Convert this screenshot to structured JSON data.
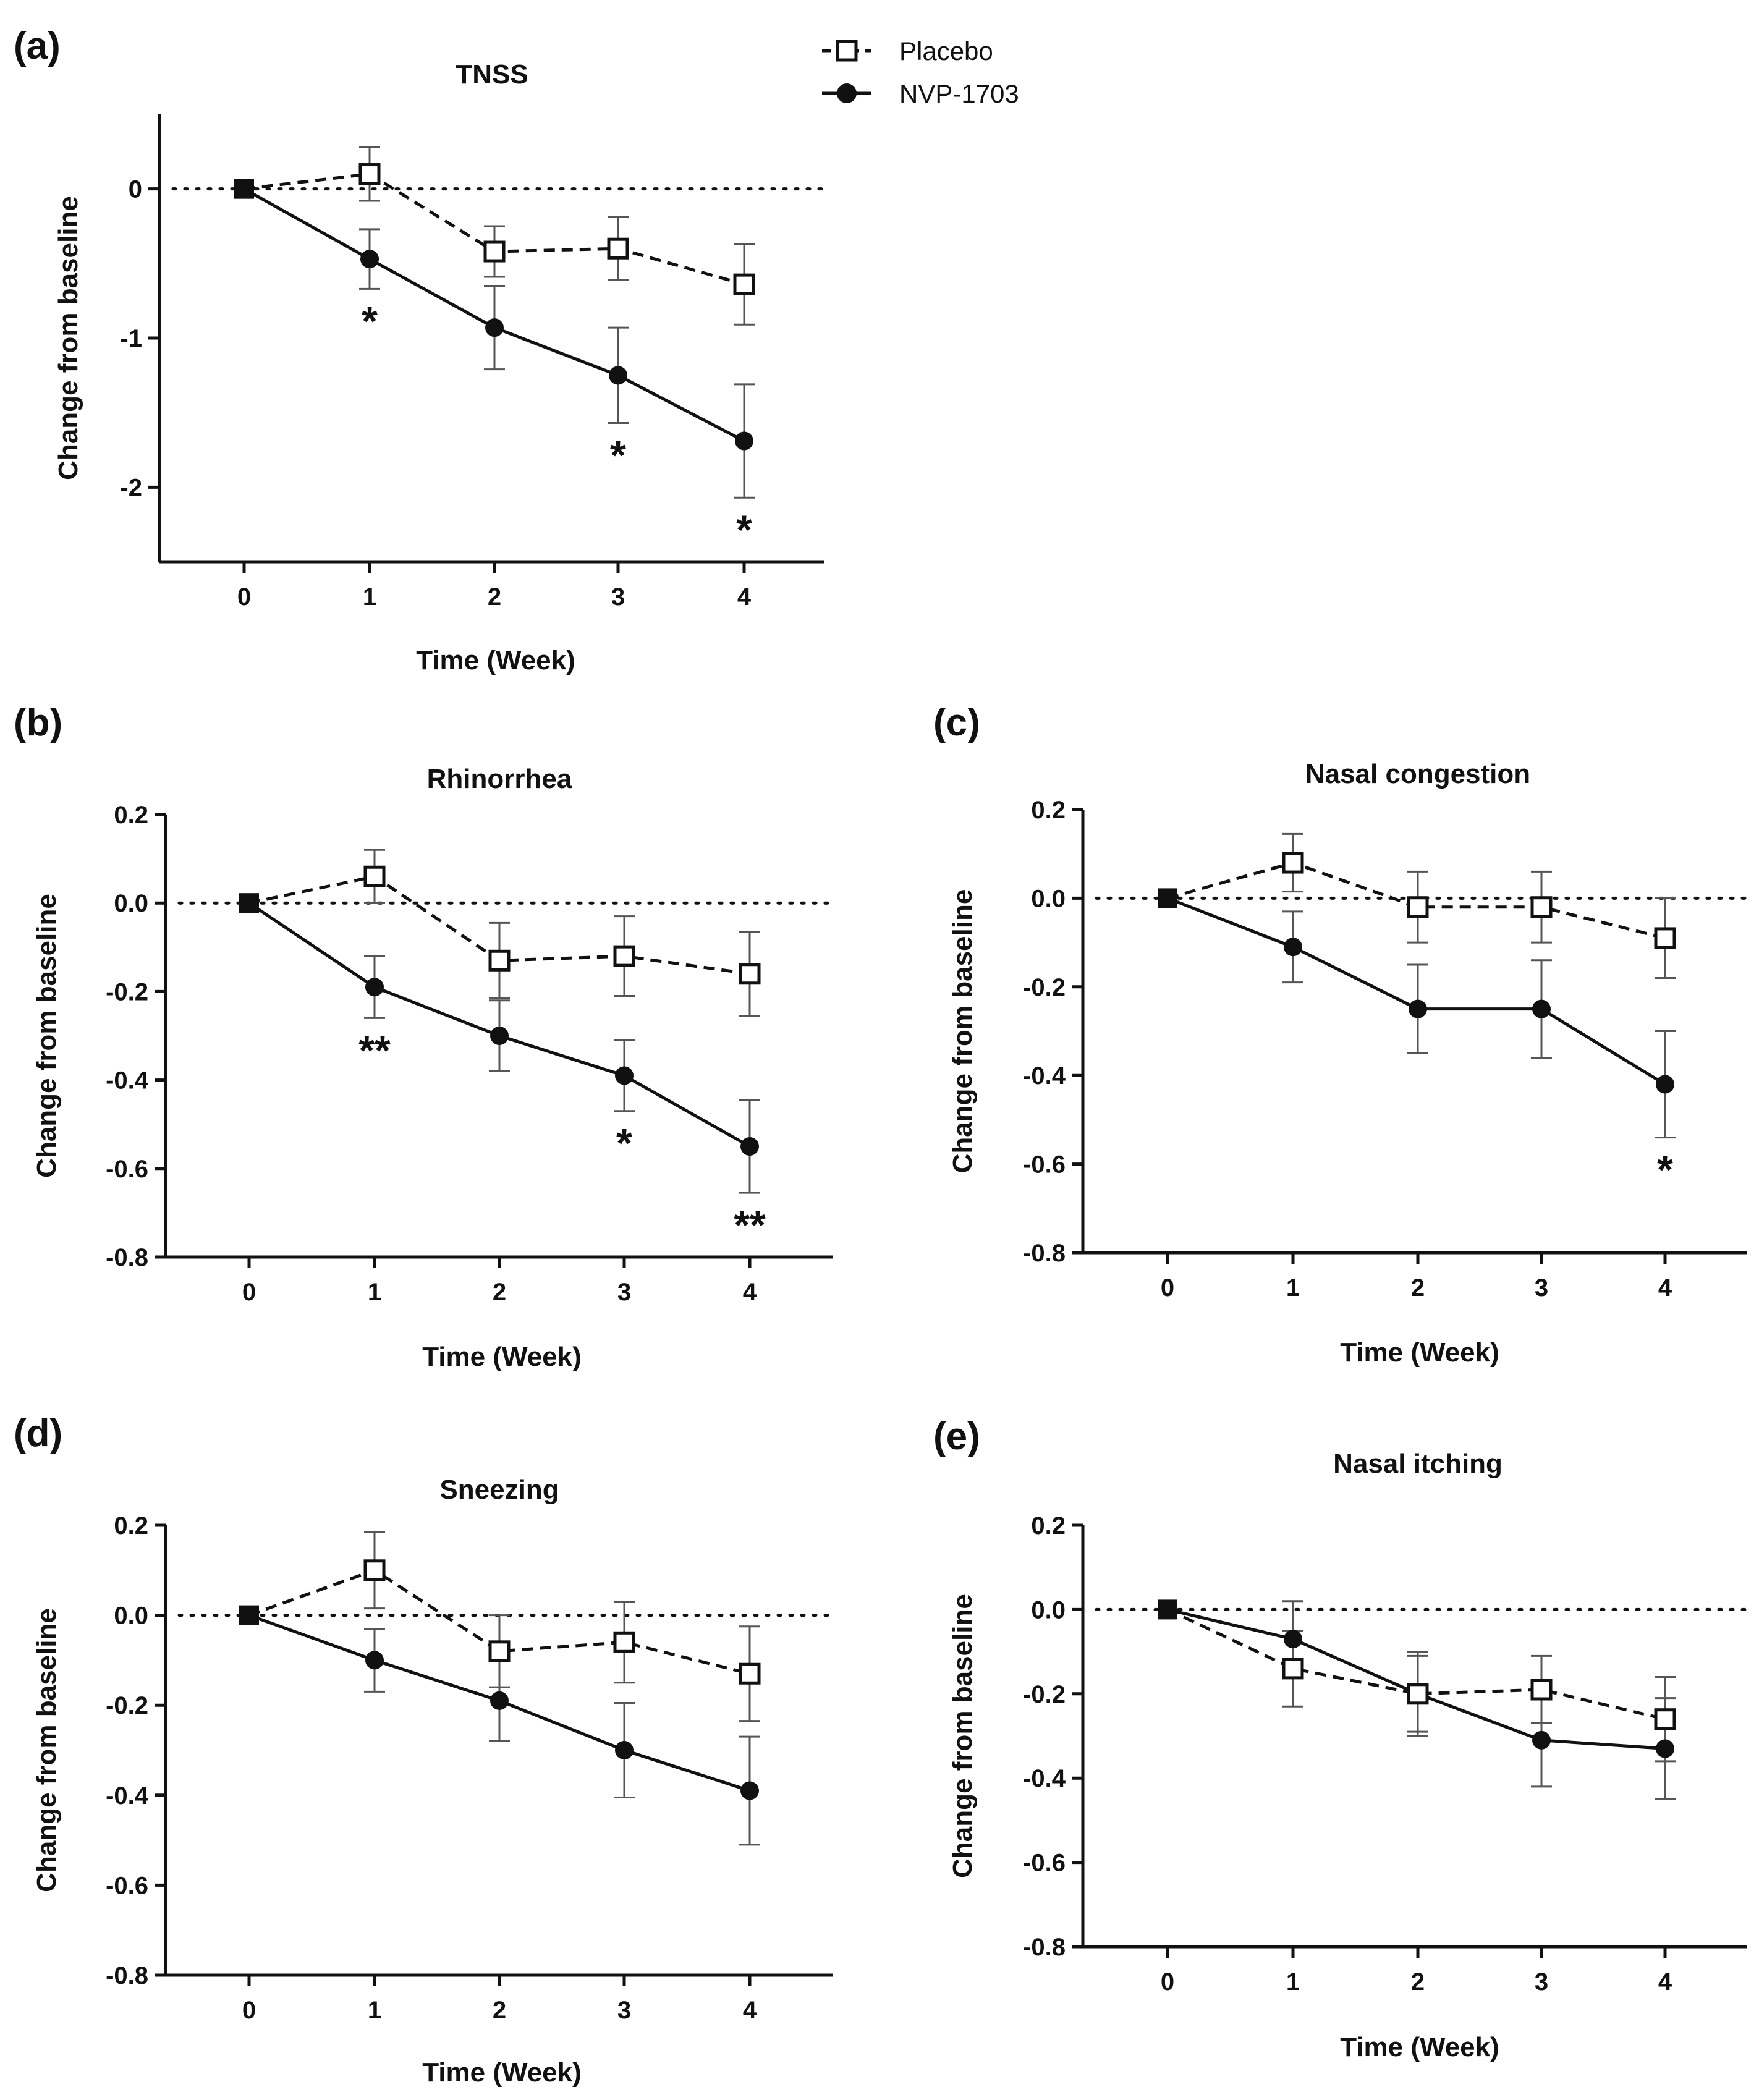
{
  "legend": {
    "entries": [
      {
        "key": "placebo",
        "label": "Placebo"
      },
      {
        "key": "nvp",
        "label": "NVP-1703"
      }
    ]
  },
  "chart_data": [
    {
      "panel": "(a)",
      "type": "line",
      "title": "TNSS",
      "xlabel": "Time (Week)",
      "ylabel": "Change from baseline",
      "x": [
        0,
        1,
        2,
        3,
        4
      ],
      "xticks": [
        "0",
        "1",
        "2",
        "3",
        "4"
      ],
      "yticks": [
        "0",
        "-1",
        "-2"
      ],
      "ytick_values": [
        0,
        -1,
        -2
      ],
      "ylim": [
        -2.5,
        0.5
      ],
      "reference_line_y": 0,
      "series": [
        {
          "name": "Placebo",
          "values": [
            0,
            0.1,
            -0.42,
            -0.4,
            -0.64
          ],
          "errors": [
            0,
            0.18,
            0.17,
            0.21,
            0.27
          ]
        },
        {
          "name": "NVP-1703",
          "values": [
            0,
            -0.47,
            -0.93,
            -1.25,
            -1.69
          ],
          "errors": [
            0,
            0.2,
            0.28,
            0.32,
            0.38
          ]
        }
      ],
      "significance": [
        {
          "x": 1,
          "mark": "*"
        },
        {
          "x": 3,
          "mark": "*"
        },
        {
          "x": 4,
          "mark": "*"
        }
      ]
    },
    {
      "panel": "(b)",
      "type": "line",
      "title": "Rhinorrhea",
      "xlabel": "Time (Week)",
      "ylabel": "Change from baseline",
      "x": [
        0,
        1,
        2,
        3,
        4
      ],
      "xticks": [
        "0",
        "1",
        "2",
        "3",
        "4"
      ],
      "yticks": [
        "0.2",
        "0.0",
        "-0.2",
        "-0.4",
        "-0.6",
        "-0.8"
      ],
      "ytick_values": [
        0.2,
        0,
        -0.2,
        -0.4,
        -0.6,
        -0.8
      ],
      "ylim": [
        -0.8,
        0.2
      ],
      "reference_line_y": 0,
      "series": [
        {
          "name": "Placebo",
          "values": [
            0,
            0.06,
            -0.13,
            -0.12,
            -0.16
          ],
          "errors": [
            0,
            0.06,
            0.085,
            0.09,
            0.095
          ]
        },
        {
          "name": "NVP-1703",
          "values": [
            0,
            -0.19,
            -0.3,
            -0.39,
            -0.55
          ],
          "errors": [
            0,
            0.07,
            0.08,
            0.08,
            0.105
          ]
        }
      ],
      "significance": [
        {
          "x": 1,
          "mark": "**"
        },
        {
          "x": 3,
          "mark": "*"
        },
        {
          "x": 4,
          "mark": "**"
        }
      ]
    },
    {
      "panel": "(c)",
      "type": "line",
      "title": "Nasal congestion",
      "xlabel": "Time (Week)",
      "ylabel": "Change from baseline",
      "x": [
        0,
        1,
        2,
        3,
        4
      ],
      "xticks": [
        "0",
        "1",
        "2",
        "3",
        "4"
      ],
      "yticks": [
        "0.2",
        "0.0",
        "-0.2",
        "-0.4",
        "-0.6",
        "-0.8"
      ],
      "ytick_values": [
        0.2,
        0,
        -0.2,
        -0.4,
        -0.6,
        -0.8
      ],
      "ylim": [
        -0.8,
        0.2
      ],
      "reference_line_y": 0,
      "series": [
        {
          "name": "Placebo",
          "values": [
            0,
            0.08,
            -0.02,
            -0.02,
            -0.09
          ],
          "errors": [
            0,
            0.065,
            0.08,
            0.08,
            0.09
          ]
        },
        {
          "name": "NVP-1703",
          "values": [
            0,
            -0.11,
            -0.25,
            -0.25,
            -0.42
          ],
          "errors": [
            0,
            0.08,
            0.1,
            0.11,
            0.12
          ]
        }
      ],
      "significance": [
        {
          "x": 4,
          "mark": "*"
        }
      ]
    },
    {
      "panel": "(d)",
      "type": "line",
      "title": "Sneezing",
      "xlabel": "Time (Week)",
      "ylabel": "Change from baseline",
      "x": [
        0,
        1,
        2,
        3,
        4
      ],
      "xticks": [
        "0",
        "1",
        "2",
        "3",
        "4"
      ],
      "yticks": [
        "0.2",
        "0.0",
        "-0.2",
        "-0.4",
        "-0.6",
        "-0.8"
      ],
      "ytick_values": [
        0.2,
        0,
        -0.2,
        -0.4,
        -0.6,
        -0.8
      ],
      "ylim": [
        -0.8,
        0.2
      ],
      "reference_line_y": 0,
      "series": [
        {
          "name": "Placebo",
          "values": [
            0,
            0.1,
            -0.08,
            -0.06,
            -0.13
          ],
          "errors": [
            0,
            0.085,
            0.08,
            0.09,
            0.105
          ]
        },
        {
          "name": "NVP-1703",
          "values": [
            0,
            -0.1,
            -0.19,
            -0.3,
            -0.39
          ],
          "errors": [
            0,
            0.07,
            0.09,
            0.105,
            0.12
          ]
        }
      ],
      "significance": []
    },
    {
      "panel": "(e)",
      "type": "line",
      "title": "Nasal itching",
      "xlabel": "Time (Week)",
      "ylabel": "Change from baseline",
      "x": [
        0,
        1,
        2,
        3,
        4
      ],
      "xticks": [
        "0",
        "1",
        "2",
        "3",
        "4"
      ],
      "yticks": [
        "0.2",
        "0.0",
        "-0.2",
        "-0.4",
        "-0.6",
        "-0.8"
      ],
      "ytick_values": [
        0.2,
        0,
        -0.2,
        -0.4,
        -0.6,
        -0.8
      ],
      "ylim": [
        -0.8,
        0.2
      ],
      "reference_line_y": 0,
      "series": [
        {
          "name": "Placebo",
          "values": [
            0,
            -0.14,
            -0.2,
            -0.19,
            -0.26
          ],
          "errors": [
            0,
            0.09,
            0.1,
            0.08,
            0.1
          ]
        },
        {
          "name": "NVP-1703",
          "values": [
            0,
            -0.07,
            -0.2,
            -0.31,
            -0.33
          ],
          "errors": [
            0,
            0.09,
            0.09,
            0.11,
            0.12
          ]
        }
      ],
      "significance": []
    }
  ]
}
